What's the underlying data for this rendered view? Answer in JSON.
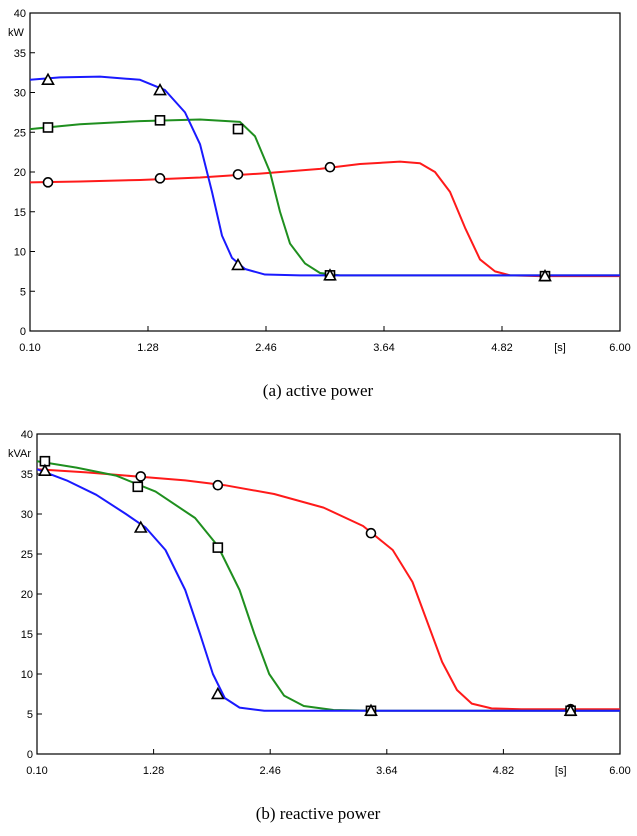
{
  "colors": {
    "red": "#ff1a1a",
    "green": "#1f8f1f",
    "blue": "#1a1aff",
    "axis": "#000000"
  },
  "chart_data": [
    {
      "type": "line",
      "caption": "(a)  active  power",
      "ylabel": "kW",
      "xunit": "[s]",
      "xlim": [
        0.1,
        6.0
      ],
      "ylim": [
        0,
        40
      ],
      "xticks": [
        0.1,
        1.28,
        2.46,
        3.64,
        4.82,
        6.0
      ],
      "xtick_labels": [
        "0.10",
        "1.28",
        "2.46",
        "3.64",
        "4.82",
        "6.00"
      ],
      "yticks": [
        0,
        5,
        10,
        15,
        20,
        25,
        30,
        35,
        40
      ],
      "ytick_labels": [
        "0",
        "5",
        "10",
        "15",
        "20",
        "25",
        "30",
        "35",
        "40"
      ],
      "grid": false,
      "series": [
        {
          "color": "red",
          "marker": "circle",
          "points": [
            [
              0.1,
              18.7
            ],
            [
              0.6,
              18.8
            ],
            [
              1.2,
              19.0
            ],
            [
              1.8,
              19.3
            ],
            [
              2.4,
              19.8
            ],
            [
              3.0,
              20.4
            ],
            [
              3.4,
              21.0
            ],
            [
              3.8,
              21.3
            ],
            [
              4.0,
              21.1
            ],
            [
              4.15,
              20.0
            ],
            [
              4.3,
              17.5
            ],
            [
              4.45,
              13.0
            ],
            [
              4.6,
              9.0
            ],
            [
              4.75,
              7.5
            ],
            [
              4.9,
              7.0
            ],
            [
              5.2,
              6.9
            ],
            [
              6.0,
              6.9
            ]
          ],
          "markers": [
            [
              0.28,
              18.7
            ],
            [
              1.4,
              19.2
            ],
            [
              2.18,
              19.7
            ],
            [
              3.1,
              20.6
            ],
            [
              5.25,
              6.9
            ]
          ]
        },
        {
          "color": "green",
          "marker": "square",
          "points": [
            [
              0.1,
              25.4
            ],
            [
              0.6,
              26.0
            ],
            [
              1.2,
              26.4
            ],
            [
              1.8,
              26.6
            ],
            [
              2.2,
              26.3
            ],
            [
              2.35,
              24.5
            ],
            [
              2.5,
              20.0
            ],
            [
              2.6,
              15.0
            ],
            [
              2.7,
              11.0
            ],
            [
              2.85,
              8.5
            ],
            [
              3.0,
              7.3
            ],
            [
              3.2,
              7.0
            ],
            [
              6.0,
              7.0
            ]
          ],
          "markers": [
            [
              0.28,
              25.6
            ],
            [
              1.4,
              26.5
            ],
            [
              2.18,
              25.4
            ],
            [
              3.1,
              7.0
            ],
            [
              5.25,
              6.9
            ]
          ]
        },
        {
          "color": "blue",
          "marker": "triangle",
          "points": [
            [
              0.1,
              31.6
            ],
            [
              0.4,
              31.9
            ],
            [
              0.8,
              32.0
            ],
            [
              1.2,
              31.6
            ],
            [
              1.45,
              30.3
            ],
            [
              1.65,
              27.5
            ],
            [
              1.8,
              23.5
            ],
            [
              1.92,
              17.5
            ],
            [
              2.02,
              12.0
            ],
            [
              2.12,
              9.2
            ],
            [
              2.25,
              7.8
            ],
            [
              2.45,
              7.1
            ],
            [
              2.8,
              7.0
            ],
            [
              6.0,
              7.0
            ]
          ],
          "markers": [
            [
              0.28,
              31.6
            ],
            [
              1.4,
              30.3
            ],
            [
              2.18,
              8.3
            ],
            [
              3.1,
              7.0
            ],
            [
              5.25,
              6.9
            ]
          ]
        }
      ]
    },
    {
      "type": "line",
      "caption": "(b)  reactive  power",
      "ylabel": "kVAr",
      "xunit": "[s]",
      "xlim": [
        0.1,
        6.0
      ],
      "ylim": [
        0,
        40
      ],
      "xticks": [
        0.1,
        1.28,
        2.46,
        3.64,
        4.82,
        6.0
      ],
      "xtick_labels": [
        "0.10",
        "1.28",
        "2.46",
        "3.64",
        "4.82",
        "6.00"
      ],
      "yticks": [
        0,
        5,
        10,
        15,
        20,
        25,
        30,
        35,
        40
      ],
      "ytick_labels": [
        "0",
        "5",
        "10",
        "15",
        "20",
        "25",
        "30",
        "35",
        "40"
      ],
      "grid": false,
      "series": [
        {
          "color": "red",
          "marker": "circle",
          "points": [
            [
              0.1,
              35.6
            ],
            [
              0.6,
              35.2
            ],
            [
              1.1,
              34.7
            ],
            [
              1.6,
              34.2
            ],
            [
              2.0,
              33.6
            ],
            [
              2.5,
              32.5
            ],
            [
              3.0,
              30.8
            ],
            [
              3.4,
              28.5
            ],
            [
              3.7,
              25.5
            ],
            [
              3.9,
              21.5
            ],
            [
              4.05,
              16.5
            ],
            [
              4.2,
              11.5
            ],
            [
              4.35,
              8.0
            ],
            [
              4.5,
              6.3
            ],
            [
              4.7,
              5.7
            ],
            [
              5.0,
              5.6
            ],
            [
              6.0,
              5.6
            ]
          ],
          "markers": [
            [
              1.15,
              34.7
            ],
            [
              1.93,
              33.6
            ],
            [
              3.48,
              27.6
            ],
            [
              5.5,
              5.6
            ]
          ]
        },
        {
          "color": "green",
          "marker": "square",
          "points": [
            [
              0.1,
              36.6
            ],
            [
              0.5,
              35.8
            ],
            [
              0.9,
              34.8
            ],
            [
              1.3,
              32.8
            ],
            [
              1.7,
              29.5
            ],
            [
              1.93,
              26.0
            ],
            [
              2.15,
              20.5
            ],
            [
              2.3,
              15.0
            ],
            [
              2.45,
              10.0
            ],
            [
              2.6,
              7.3
            ],
            [
              2.8,
              6.0
            ],
            [
              3.1,
              5.5
            ],
            [
              3.5,
              5.4
            ],
            [
              6.0,
              5.4
            ]
          ],
          "markers": [
            [
              0.18,
              36.6
            ],
            [
              1.12,
              33.4
            ],
            [
              1.93,
              25.8
            ],
            [
              3.48,
              5.4
            ],
            [
              5.5,
              5.4
            ]
          ]
        },
        {
          "color": "blue",
          "marker": "triangle",
          "points": [
            [
              0.1,
              35.6
            ],
            [
              0.4,
              34.2
            ],
            [
              0.7,
              32.4
            ],
            [
              1.0,
              30.0
            ],
            [
              1.2,
              28.3
            ],
            [
              1.4,
              25.5
            ],
            [
              1.6,
              20.5
            ],
            [
              1.75,
              15.0
            ],
            [
              1.88,
              10.0
            ],
            [
              2.0,
              7.0
            ],
            [
              2.15,
              5.8
            ],
            [
              2.4,
              5.4
            ],
            [
              6.0,
              5.4
            ]
          ],
          "markers": [
            [
              0.18,
              35.4
            ],
            [
              1.15,
              28.3
            ],
            [
              1.93,
              7.5
            ],
            [
              3.48,
              5.4
            ],
            [
              5.5,
              5.4
            ]
          ]
        }
      ]
    }
  ]
}
